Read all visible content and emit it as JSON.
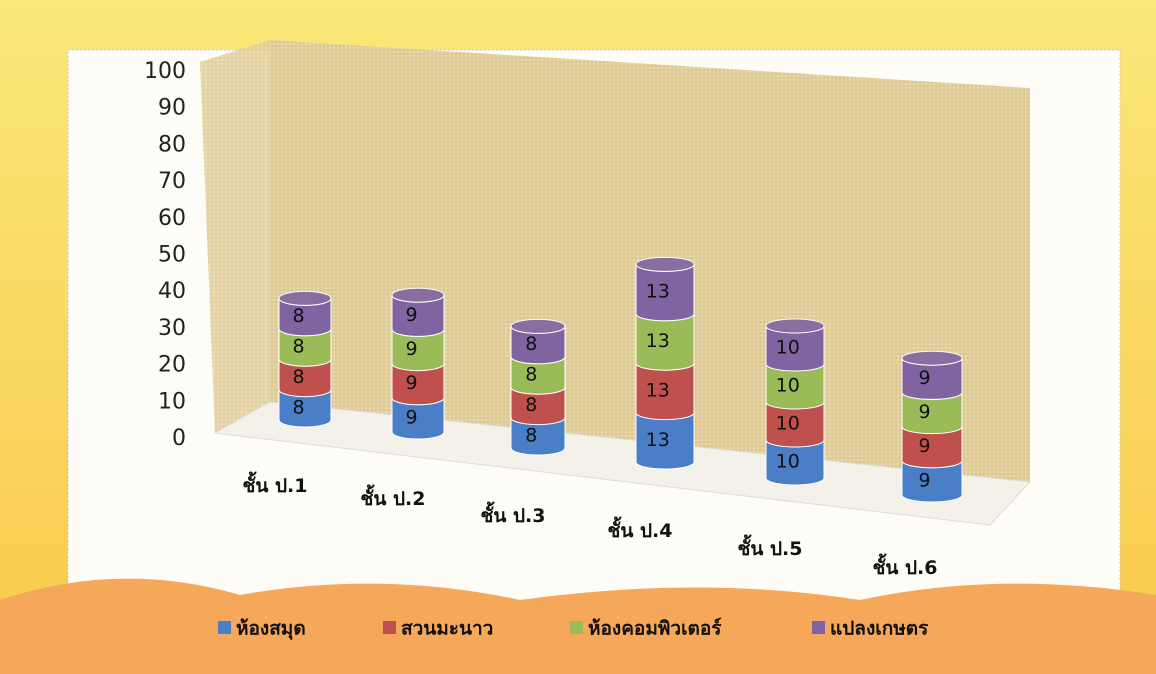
{
  "chart_data": {
    "type": "bar",
    "stacked": true,
    "categories": [
      "ชั้น ป.1",
      "ชั้น ป.2",
      "ชั้น ป.3",
      "ชั้น ป.4",
      "ชั้น ป.5",
      "ชั้น ป.6"
    ],
    "series": [
      {
        "name": "ห้องสมุด",
        "color": "#4a7ec6",
        "values": [
          8,
          9,
          8,
          13,
          10,
          9
        ]
      },
      {
        "name": "สวนมะนาว",
        "color": "#c0504d",
        "values": [
          8,
          9,
          8,
          13,
          10,
          9
        ]
      },
      {
        "name": "ห้องคอมพิวเตอร์",
        "color": "#9bbb59",
        "values": [
          8,
          9,
          8,
          13,
          10,
          9
        ]
      },
      {
        "name": "แปลงเกษตร",
        "color": "#8064a2",
        "values": [
          8,
          9,
          8,
          13,
          10,
          9
        ]
      }
    ],
    "ylim": [
      0,
      100
    ],
    "yticks": [
      0,
      10,
      20,
      30,
      40,
      50,
      60,
      70,
      80,
      90,
      100
    ]
  }
}
